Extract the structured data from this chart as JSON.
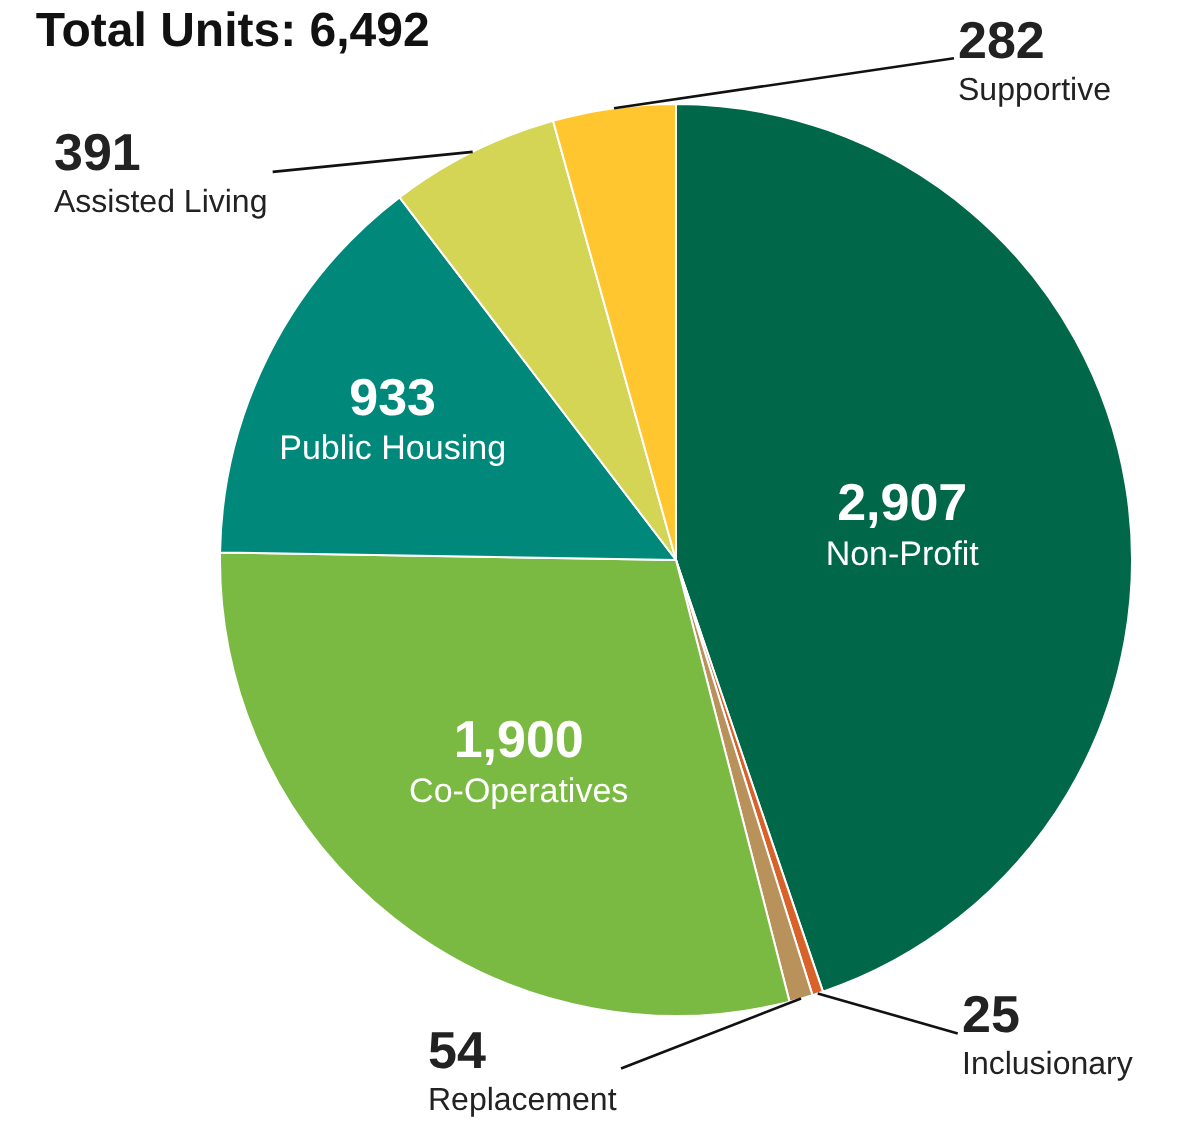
{
  "chart_data": {
    "type": "pie",
    "title": "Total Units: 6,492",
    "categories": [
      "Non-Profit",
      "Inclusionary",
      "Replacement",
      "Co-Operatives",
      "Public Housing",
      "Assisted Living",
      "Supportive"
    ],
    "values": [
      2907,
      25,
      54,
      1900,
      933,
      391,
      282
    ],
    "colors": [
      "#006848",
      "#d9622b",
      "#b8925a",
      "#7aba42",
      "#00897b",
      "#d4d455",
      "#ffc62f"
    ],
    "value_labels": [
      "2,907",
      "25",
      "54",
      "1,900",
      "933",
      "391",
      "282"
    ],
    "legend": false
  }
}
